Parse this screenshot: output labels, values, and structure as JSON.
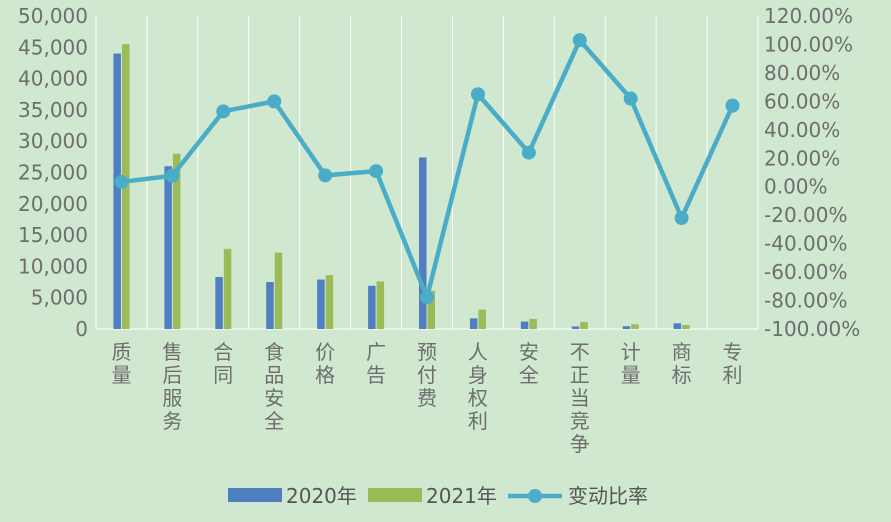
{
  "chart_data": {
    "type": "bar",
    "categories": [
      "质量",
      "售后服务",
      "合同",
      "食品安全",
      "价格",
      "广告",
      "预付费",
      "人身权利",
      "安全",
      "不正当竞争",
      "计量",
      "商标",
      "专利"
    ],
    "series": [
      {
        "name": "2020年",
        "kind": "bar",
        "axis": "left",
        "values": [
          44000,
          26000,
          8300,
          7500,
          7900,
          6900,
          27400,
          1700,
          1200,
          400,
          450,
          900,
          0
        ]
      },
      {
        "name": "2021年",
        "kind": "bar",
        "axis": "left",
        "values": [
          45500,
          28000,
          12800,
          12200,
          8600,
          7600,
          6100,
          3100,
          1600,
          1100,
          750,
          650,
          0
        ]
      },
      {
        "name": "变动比率",
        "kind": "line",
        "axis": "right",
        "values": [
          3.4,
          7.7,
          53.0,
          60.0,
          8.0,
          11.0,
          -77.7,
          65.0,
          24.0,
          103.0,
          62.0,
          -22.0,
          57.0
        ]
      }
    ],
    "y_left": {
      "min": 0,
      "max": 50000,
      "step": 5000,
      "tick_labels": [
        "0",
        "5,000",
        "10,000",
        "15,000",
        "20,000",
        "25,000",
        "30,000",
        "35,000",
        "40,000",
        "45,000",
        "50,000"
      ]
    },
    "y_right": {
      "min": -100,
      "max": 120,
      "step": 20,
      "tick_labels": [
        "-100.00%",
        "-80.00%",
        "-60.00%",
        "-40.00%",
        "-20.00%",
        "0.00%",
        "20.00%",
        "40.00%",
        "60.00%",
        "80.00%",
        "100.00%",
        "120.00%"
      ]
    },
    "grid": "vertical",
    "legend": "bottom",
    "colors": {
      "background": "#cfe8cf",
      "bar_2020": "#4f7fc0",
      "bar_2021": "#9bbb59",
      "line": "#4aacc6",
      "grid": "#ffffff",
      "text": "#6e6e6e"
    }
  }
}
